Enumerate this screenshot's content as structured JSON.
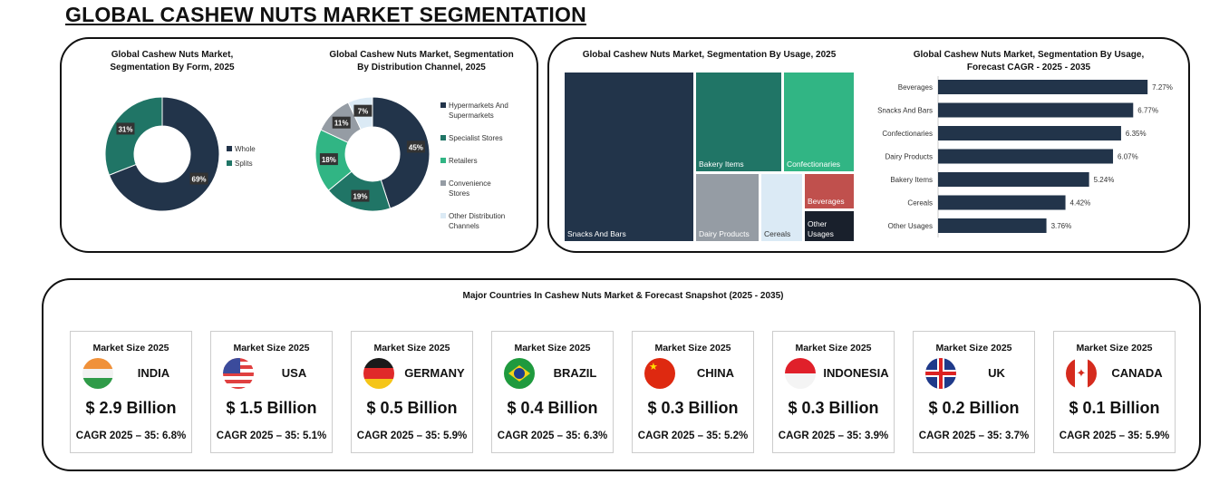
{
  "title": "GLOBAL CASHEW NUTS MARKET SEGMENTATION",
  "chart_data": [
    {
      "type": "pie",
      "title": "Global Cashew Nuts Market, Segmentation By Form, 2025",
      "categories": [
        "Whole",
        "Splits"
      ],
      "values": [
        69,
        31
      ],
      "labels": [
        "69%",
        "31%"
      ],
      "colors": [
        "#22344a",
        "#207566"
      ],
      "legend": "right"
    },
    {
      "type": "pie",
      "title": "Global Cashew Nuts Market, Segmentation By Distribution Channel, 2025",
      "categories": [
        "Hypermarkets And Supermarkets",
        "Specialist Stores",
        "Retailers",
        "Convenience Stores",
        "Other Distribution Channels"
      ],
      "values": [
        45,
        19,
        18,
        11,
        7
      ],
      "labels": [
        "45%",
        "19%",
        "18%",
        "11%",
        "7%"
      ],
      "colors": [
        "#22344a",
        "#207566",
        "#31b584",
        "#959ca4",
        "#dbeaf5"
      ],
      "legend": "right"
    },
    {
      "type": "treemap",
      "title": "Global Cashew Nuts Market, Segmentation By Usage, 2025",
      "categories": [
        "Snacks And Bars",
        "Bakery Items",
        "Confectionaries",
        "Dairy Products",
        "Cereals",
        "Beverages",
        "Other Usages"
      ],
      "colors": [
        "#22344a",
        "#207566",
        "#31b584",
        "#959ca4",
        "#dbeaf5",
        "#c0504d",
        "#19202c"
      ]
    },
    {
      "type": "bar",
      "orientation": "horizontal",
      "title": "Global Cashew Nuts Market, Segmentation By Usage, Forecast CAGR - 2025 - 2035",
      "categories": [
        "Beverages",
        "Snacks And Bars",
        "Confectionaries",
        "Dairy Products",
        "Bakery Items",
        "Cereals",
        "Other Usages"
      ],
      "values": [
        7.27,
        6.77,
        6.35,
        6.07,
        5.24,
        4.42,
        3.76
      ],
      "labels": [
        "7.27%",
        "6.77%",
        "6.35%",
        "6.07%",
        "5.24%",
        "4.42%",
        "3.76%"
      ],
      "color": "#22344a"
    }
  ],
  "snapshot": {
    "title": "Major Countries In Cashew Nuts Market & Forecast Snapshot (2025 - 2035)",
    "countries": [
      {
        "label": "Market Size 2025",
        "name": "INDIA",
        "value": "$ 2.9 Billion",
        "cagr": "CAGR 2025 – 35: 6.8%",
        "flag": "india-flag"
      },
      {
        "label": "Market Size 2025",
        "name": "USA",
        "value": "$ 1.5 Billion",
        "cagr": "CAGR 2025 – 35: 5.1%",
        "flag": "usa-flag"
      },
      {
        "label": "Market Size 2025",
        "name": "GERMANY",
        "value": "$ 0.5 Billion",
        "cagr": "CAGR 2025 – 35: 5.9%",
        "flag": "germany-flag"
      },
      {
        "label": "Market Size 2025",
        "name": "BRAZIL",
        "value": "$ 0.4 Billion",
        "cagr": "CAGR 2025 – 35: 6.3%",
        "flag": "brazil-flag"
      },
      {
        "label": "Market Size 2025",
        "name": "CHINA",
        "value": "$ 0.3 Billion",
        "cagr": "CAGR 2025 – 35: 5.2%",
        "flag": "china-flag"
      },
      {
        "label": "Market Size 2025",
        "name": "INDONESIA",
        "value": "$ 0.3 Billion",
        "cagr": "CAGR 2025 – 35: 3.9%",
        "flag": "indonesia-flag"
      },
      {
        "label": "Market Size 2025",
        "name": "UK",
        "value": "$ 0.2 Billion",
        "cagr": "CAGR 2025 – 35: 3.7%",
        "flag": "uk-flag"
      },
      {
        "label": "Market Size 2025",
        "name": "CANADA",
        "value": "$ 0.1 Billion",
        "cagr": "CAGR 2025 – 35: 5.9%",
        "flag": "canada-flag"
      }
    ]
  }
}
